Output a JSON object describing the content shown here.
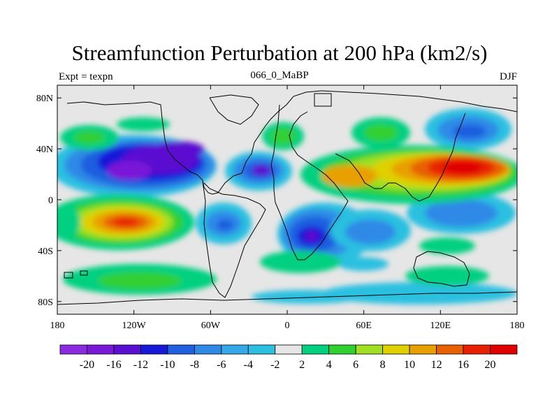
{
  "title": "Streamfunction Perturbation at 200 hPa (km2/s)",
  "subtitle": {
    "left": "Expt = texpn",
    "center": "066_0_MaBP",
    "right": "DJF"
  },
  "chart_data": {
    "type": "heatmap",
    "title": "Streamfunction Perturbation at 200 hPa (km2/s)",
    "units": "km2/s",
    "x_range": [
      -180,
      180
    ],
    "y_range": [
      -90,
      90
    ],
    "x_ticks": [
      {
        "value": -180,
        "label": "180"
      },
      {
        "value": -120,
        "label": "120W"
      },
      {
        "value": -60,
        "label": "60W"
      },
      {
        "value": 0,
        "label": "0"
      },
      {
        "value": 60,
        "label": "60E"
      },
      {
        "value": 120,
        "label": "120E"
      },
      {
        "value": 180,
        "label": "180"
      }
    ],
    "y_ticks": [
      {
        "value": 80,
        "label": "80N"
      },
      {
        "value": 40,
        "label": "40N"
      },
      {
        "value": 0,
        "label": "0"
      },
      {
        "value": -40,
        "label": "40S"
      },
      {
        "value": -80,
        "label": "80S"
      }
    ],
    "contour_levels": [
      -20,
      -16,
      -12,
      -10,
      -8,
      -6,
      -4,
      -2,
      2,
      4,
      6,
      8,
      10,
      12,
      16,
      20
    ],
    "colorbar_colors": [
      "#8a2be2",
      "#7a18d8",
      "#5a10d0",
      "#1818d8",
      "#1f5fe0",
      "#2f8ae6",
      "#35a8e8",
      "#2cc0e0",
      "#e6e6e6",
      "#00d080",
      "#30d030",
      "#a0e020",
      "#e0d000",
      "#e8a000",
      "#e86000",
      "#e82000",
      "#e00000"
    ],
    "anomaly_centers": [
      {
        "lon": -125,
        "lat": 22,
        "value": -20
      },
      {
        "lon": -85,
        "lat": 34,
        "value": -16
      },
      {
        "lon": -22,
        "lat": 22,
        "value": -12
      },
      {
        "lon": 20,
        "lat": -28,
        "value": -12
      },
      {
        "lon": -48,
        "lat": -22,
        "value": -6
      },
      {
        "lon": 60,
        "lat": -20,
        "value": -4
      },
      {
        "lon": 135,
        "lat": -16,
        "value": -6
      },
      {
        "lon": 132,
        "lat": 54,
        "value": -6
      },
      {
        "lon": -130,
        "lat": -18,
        "value": 20
      },
      {
        "lon": 138,
        "lat": 24,
        "value": 20
      },
      {
        "lon": 52,
        "lat": 18,
        "value": 12
      },
      {
        "lon": -10,
        "lat": 48,
        "value": 6
      },
      {
        "lon": 60,
        "lat": 48,
        "value": 6
      },
      {
        "lon": -160,
        "lat": 42,
        "value": 6
      },
      {
        "lon": -110,
        "lat": -60,
        "value": 6
      },
      {
        "lon": 22,
        "lat": -52,
        "value": 4
      },
      {
        "lon": 140,
        "lat": -52,
        "value": 4
      },
      {
        "lon": 110,
        "lat": -33,
        "value": 4
      }
    ]
  }
}
